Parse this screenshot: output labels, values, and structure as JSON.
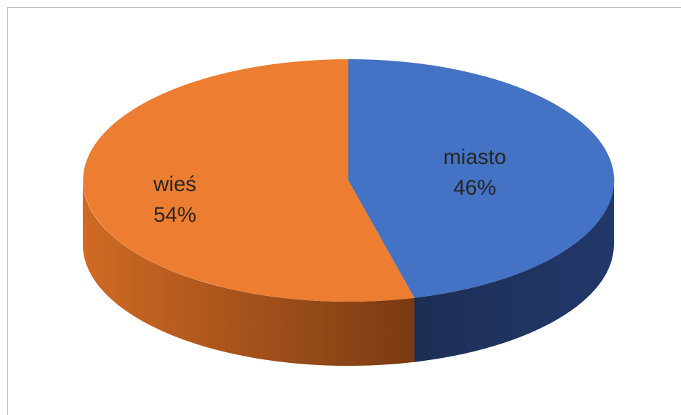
{
  "chart_data": {
    "type": "pie",
    "style": "3d",
    "slices": [
      {
        "label": "miasto",
        "percent_label": "46%",
        "value": 46,
        "color": "#4472c4"
      },
      {
        "label": "wieś",
        "percent_label": "54%",
        "value": 54,
        "color": "#ed7d31"
      }
    ]
  }
}
